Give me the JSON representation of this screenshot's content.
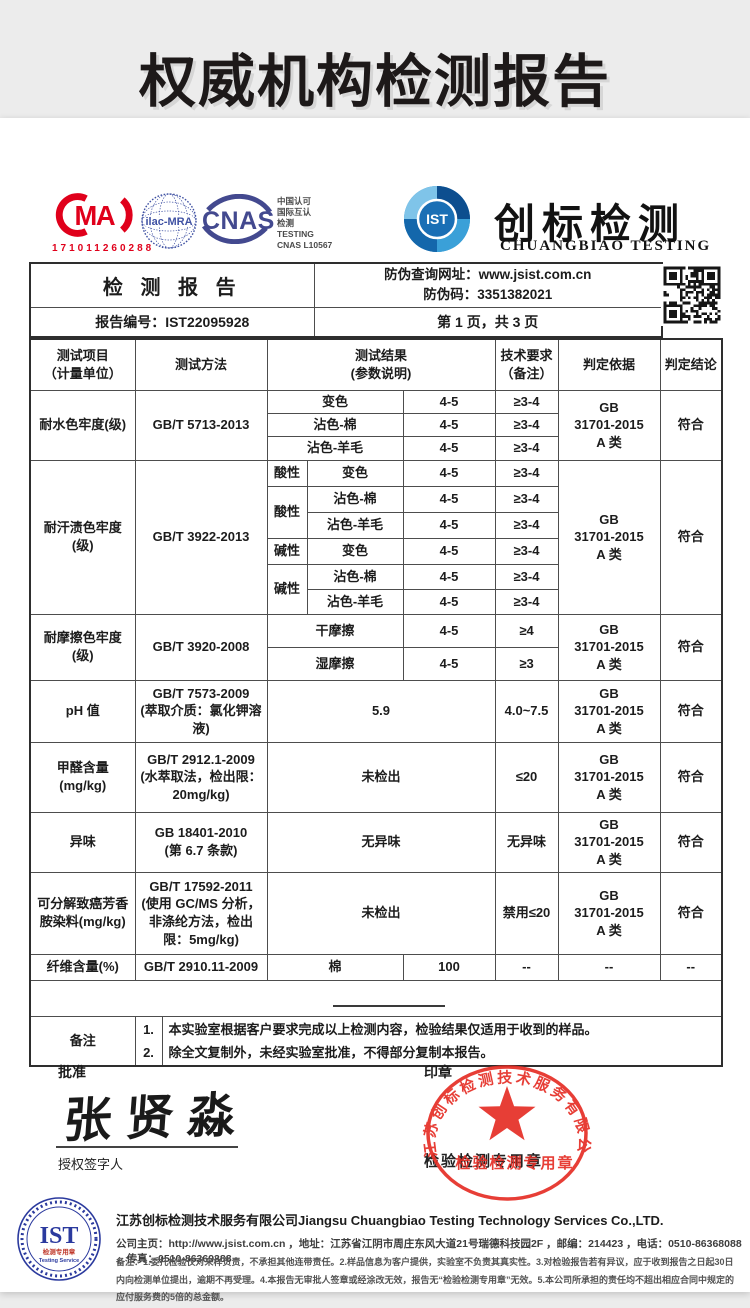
{
  "banner": {
    "title": "权威机构检测报告"
  },
  "logos": {
    "cma": {
      "label": "MA",
      "number": "171011260288"
    },
    "ilac": {
      "label": "ilac-MRA"
    },
    "cnas": {
      "label": "CNAS"
    },
    "accreditation": [
      "中国认可",
      "国际互认",
      "检测",
      "TESTING",
      "CNAS L10567"
    ],
    "ist": {
      "label": "IST"
    },
    "brand": {
      "cn": "创标检测",
      "en": "CHUANGBIAO TESTING"
    }
  },
  "report_header": {
    "title": "检 测 报 告",
    "anti_fake_line1": "防伪查询网址：www.jsist.com.cn",
    "anti_fake_line2": "防伪码：3351382021",
    "report_no": "报告编号：IST22095928",
    "page_info": "第 1 页，共 3 页"
  },
  "table": {
    "header": {
      "item": "测试项目\n（计量单位）",
      "method": "测试方法",
      "result": "测试结果\n(参数说明)",
      "requirement": "技术要求\n（备注）",
      "basis": "判定依据",
      "conclusion": "判定结论"
    },
    "basis_gb": "GB\n31701-2015\nA 类",
    "pass": "符合",
    "water": {
      "item": "耐水色牢度(级)",
      "method": "GB/T 5713-2013",
      "rows": [
        {
          "param": "变色",
          "result": "4-5",
          "req": "≥3-4"
        },
        {
          "param": "沾色-棉",
          "result": "4-5",
          "req": "≥3-4"
        },
        {
          "param": "沾色-羊毛",
          "result": "4-5",
          "req": "≥3-4"
        }
      ]
    },
    "sweat": {
      "item": "耐汗渍色牢度\n(级)",
      "method": "GB/T 3922-2013",
      "acid": "酸性",
      "alkali": "碱性",
      "rows": [
        {
          "param": "变色",
          "result": "4-5",
          "req": "≥3-4"
        },
        {
          "param": "沾色-棉",
          "result": "4-5",
          "req": "≥3-4"
        },
        {
          "param": "沾色-羊毛",
          "result": "4-5",
          "req": "≥3-4"
        },
        {
          "param": "变色",
          "result": "4-5",
          "req": "≥3-4"
        },
        {
          "param": "沾色-棉",
          "result": "4-5",
          "req": "≥3-4"
        },
        {
          "param": "沾色-羊毛",
          "result": "4-5",
          "req": "≥3-4"
        }
      ]
    },
    "friction": {
      "item": "耐摩擦色牢度\n(级)",
      "method": "GB/T 3920-2008",
      "rows": [
        {
          "param": "干摩擦",
          "result": "4-5",
          "req": "≥4"
        },
        {
          "param": "湿摩擦",
          "result": "4-5",
          "req": "≥3"
        }
      ]
    },
    "ph": {
      "item": "pH 值",
      "method": "GB/T 7573-2009\n(萃取介质：氯化钾溶\n液)",
      "result": "5.9",
      "req": "4.0~7.5"
    },
    "formaldehyde": {
      "item": "甲醛含量\n(mg/kg)",
      "method": "GB/T 2912.1-2009\n(水萃取法，检出限：\n20mg/kg)",
      "result": "未检出",
      "req": "≤20"
    },
    "odor": {
      "item": "异味",
      "method": "GB 18401-2010\n(第 6.7 条款)",
      "result": "无异味",
      "req": "无异味"
    },
    "amine": {
      "item": "可分解致癌芳香\n胺染料(mg/kg)",
      "method": "GB/T 17592-2011\n(使用 GC/MS 分析，\n非涤纶方法，检出\n限：5mg/kg)",
      "result": "未检出",
      "req": "禁用≤20"
    },
    "fiber": {
      "item": "纤维含量(%)",
      "method": "GB/T 2910.11-2009",
      "param": "棉",
      "value": "100",
      "req": "--",
      "basis": "--",
      "conclusion": "--"
    }
  },
  "remarks": {
    "label": "备注",
    "items": [
      {
        "no": "1.",
        "text": "本实验室根据客户要求完成以上检测内容，检验结果仅适用于收到的样品。"
      },
      {
        "no": "2.",
        "text": "除全文复制外，未经实验室批准，不得部分复制本报告。"
      }
    ]
  },
  "approval": {
    "label": "批准",
    "signature": "张贤淼",
    "signer_label": "授权签字人",
    "seal_label": "印章",
    "stamp_printed_text": "检验检测专用章"
  },
  "stamp": {
    "company_arc": "江苏创标检测技术服务有限公司",
    "bottom_text": "检验检测专用章"
  },
  "footer": {
    "seal_text": "IST",
    "seal_line1": "检测专用章",
    "seal_line2": "Testing Service",
    "company_cn": "江苏创标检测技术服务有限公司",
    "company_en": "Jiangsu Chuangbiao Testing Technology Services Co.,LTD.",
    "info": "公司主页：http://www.jsist.com.cn ，地址：江苏省江阴市周庄东风大道21号瑞德科技园2F ，邮编：214423 ，电话：0510-86368088 ，传真：0510-86369388",
    "remark": "备注：1.委托检验仅对来样负责，不承担其他连带责任。2.样品信息为客户提供，实验室不负责其真实性。3.对检验报告若有异议，应于收到报告之日起30日内向检测单位提出，逾期不再受理。4.本报告无审批人签章或经涂改无效，报告无“检验检测专用章”无效。5.本公司所承担的责任均不超出相应合同中规定的应付服务费的5倍的总金额。"
  },
  "colors": {
    "cma_red": "#e0001b",
    "stamp_red": "#e62e26",
    "cnas_blue": "#43498f",
    "ist_blue": "#1a6fb5",
    "seal_blue": "#2b3a9e"
  }
}
